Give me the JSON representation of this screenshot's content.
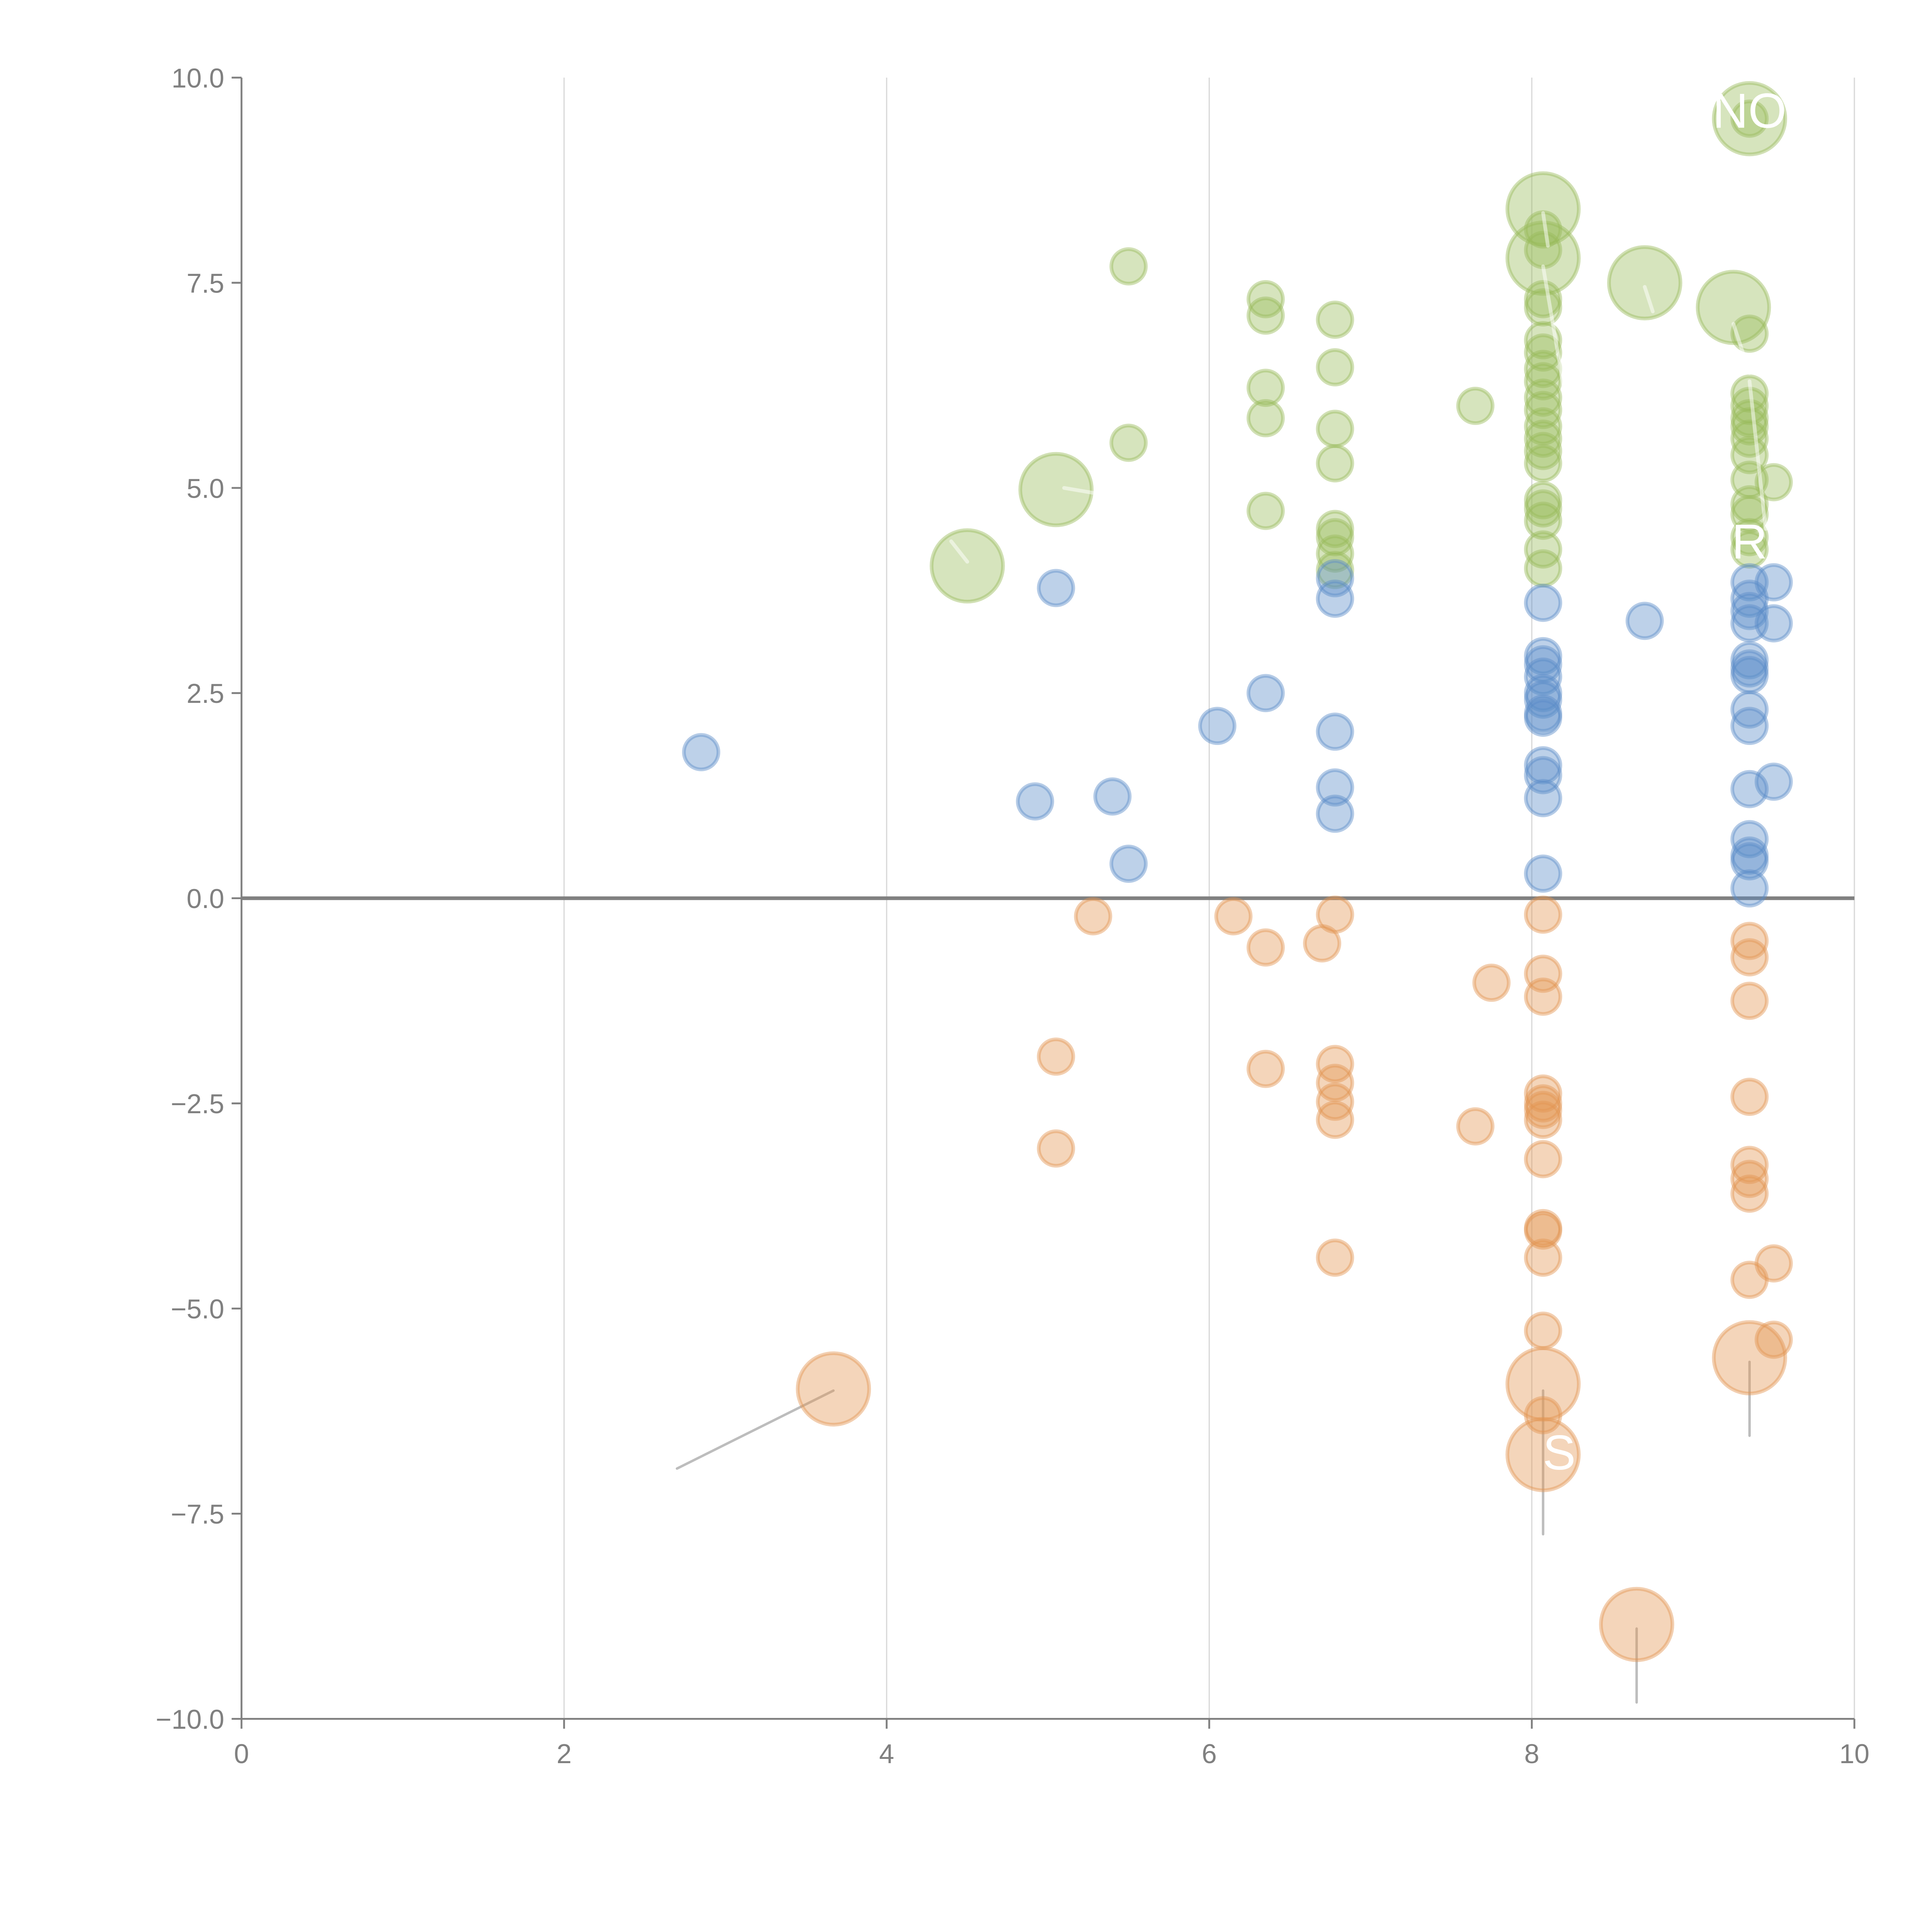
{
  "chart_data": {
    "type": "scatter",
    "subtype": "bubble",
    "title": "",
    "xlabel": "",
    "ylabel": "",
    "xlim": [
      0,
      10
    ],
    "ylim": [
      -10,
      10
    ],
    "x_ticks": [
      "0",
      "2",
      "4",
      "6",
      "8",
      "10"
    ],
    "x_tick_values": [
      0,
      2,
      4,
      6,
      8,
      10
    ],
    "y_ticks": [
      "10.0",
      "7.5",
      "5.0",
      "2.5",
      "0.0",
      "−2.5",
      "−5.0",
      "−7.5",
      "−10.0"
    ],
    "y_tick_values": [
      10,
      7.5,
      5,
      2.5,
      0,
      -2.5,
      -5,
      -7.5,
      -10
    ],
    "grid": "vertical",
    "zero_line": true,
    "legend": "none",
    "colors": {
      "green": "#98bb5a",
      "blue": "#5b8cc8",
      "orange": "#e39552",
      "axis": "#808080",
      "grid": "#d9d9d9"
    },
    "series": [
      {
        "name": "green",
        "color": "#98bb5a",
        "points": [
          {
            "x": 9.35,
            "y": 9.5,
            "size": 3
          },
          {
            "x": 9.35,
            "y": 9.5,
            "size": 1
          },
          {
            "x": 8.07,
            "y": 8.4,
            "size": 3
          },
          {
            "x": 8.07,
            "y": 8.15,
            "size": 1
          },
          {
            "x": 8.07,
            "y": 7.8,
            "size": 3
          },
          {
            "x": 8.07,
            "y": 7.9,
            "size": 1
          },
          {
            "x": 8.7,
            "y": 7.5,
            "size": 3
          },
          {
            "x": 9.25,
            "y": 7.2,
            "size": 3
          },
          {
            "x": 5.5,
            "y": 7.7,
            "size": 1
          },
          {
            "x": 6.35,
            "y": 7.3,
            "size": 1
          },
          {
            "x": 6.35,
            "y": 7.1,
            "size": 1
          },
          {
            "x": 6.78,
            "y": 7.05,
            "size": 1
          },
          {
            "x": 8.07,
            "y": 7.3,
            "size": 1
          },
          {
            "x": 8.07,
            "y": 7.2,
            "size": 1
          },
          {
            "x": 9.35,
            "y": 6.88,
            "size": 1
          },
          {
            "x": 8.07,
            "y": 6.8,
            "size": 1
          },
          {
            "x": 8.07,
            "y": 6.65,
            "size": 1
          },
          {
            "x": 8.07,
            "y": 6.45,
            "size": 1
          },
          {
            "x": 8.07,
            "y": 6.3,
            "size": 1
          },
          {
            "x": 8.07,
            "y": 6.1,
            "size": 1
          },
          {
            "x": 8.07,
            "y": 5.95,
            "size": 1
          },
          {
            "x": 8.07,
            "y": 5.75,
            "size": 1
          },
          {
            "x": 8.07,
            "y": 5.6,
            "size": 1
          },
          {
            "x": 8.07,
            "y": 5.45,
            "size": 1
          },
          {
            "x": 8.07,
            "y": 5.3,
            "size": 1
          },
          {
            "x": 8.07,
            "y": 4.85,
            "size": 1
          },
          {
            "x": 8.07,
            "y": 4.75,
            "size": 1
          },
          {
            "x": 8.07,
            "y": 4.6,
            "size": 1
          },
          {
            "x": 8.07,
            "y": 4.25,
            "size": 1
          },
          {
            "x": 8.07,
            "y": 4.02,
            "size": 1
          },
          {
            "x": 6.78,
            "y": 6.47,
            "size": 1
          },
          {
            "x": 6.35,
            "y": 6.22,
            "size": 1
          },
          {
            "x": 6.35,
            "y": 5.85,
            "size": 1
          },
          {
            "x": 6.78,
            "y": 5.72,
            "size": 1
          },
          {
            "x": 7.65,
            "y": 6.0,
            "size": 1
          },
          {
            "x": 5.5,
            "y": 5.55,
            "size": 1
          },
          {
            "x": 6.78,
            "y": 5.3,
            "size": 1
          },
          {
            "x": 5.05,
            "y": 4.98,
            "size": 3
          },
          {
            "x": 4.5,
            "y": 4.05,
            "size": 3
          },
          {
            "x": 6.35,
            "y": 4.72,
            "size": 1
          },
          {
            "x": 6.78,
            "y": 4.5,
            "size": 1
          },
          {
            "x": 6.78,
            "y": 4.4,
            "size": 1
          },
          {
            "x": 6.78,
            "y": 4.2,
            "size": 1
          },
          {
            "x": 6.78,
            "y": 4.0,
            "size": 1
          },
          {
            "x": 9.35,
            "y": 6.15,
            "size": 1
          },
          {
            "x": 9.35,
            "y": 6.0,
            "size": 1
          },
          {
            "x": 9.35,
            "y": 5.85,
            "size": 1
          },
          {
            "x": 9.35,
            "y": 5.75,
            "size": 1
          },
          {
            "x": 9.35,
            "y": 5.6,
            "size": 1
          },
          {
            "x": 9.35,
            "y": 5.4,
            "size": 1
          },
          {
            "x": 9.35,
            "y": 5.1,
            "size": 1
          },
          {
            "x": 9.5,
            "y": 5.07,
            "size": 1
          },
          {
            "x": 9.35,
            "y": 4.8,
            "size": 1
          },
          {
            "x": 9.35,
            "y": 4.68,
            "size": 1
          },
          {
            "x": 9.35,
            "y": 4.4,
            "size": 1
          },
          {
            "x": 9.35,
            "y": 4.25,
            "size": 1
          }
        ]
      },
      {
        "name": "blue",
        "color": "#5b8cc8",
        "points": [
          {
            "x": 5.05,
            "y": 3.78,
            "size": 1
          },
          {
            "x": 6.78,
            "y": 3.9,
            "size": 1
          },
          {
            "x": 6.78,
            "y": 3.65,
            "size": 1
          },
          {
            "x": 8.07,
            "y": 3.6,
            "size": 1
          },
          {
            "x": 8.7,
            "y": 3.38,
            "size": 1
          },
          {
            "x": 9.35,
            "y": 3.85,
            "size": 1
          },
          {
            "x": 9.5,
            "y": 3.85,
            "size": 1
          },
          {
            "x": 9.35,
            "y": 3.65,
            "size": 1
          },
          {
            "x": 9.35,
            "y": 3.5,
            "size": 1
          },
          {
            "x": 9.35,
            "y": 3.35,
            "size": 1
          },
          {
            "x": 9.5,
            "y": 3.35,
            "size": 1
          },
          {
            "x": 8.07,
            "y": 2.95,
            "size": 1
          },
          {
            "x": 8.07,
            "y": 2.85,
            "size": 1
          },
          {
            "x": 8.07,
            "y": 2.7,
            "size": 1
          },
          {
            "x": 8.07,
            "y": 2.5,
            "size": 1
          },
          {
            "x": 8.07,
            "y": 2.42,
            "size": 1
          },
          {
            "x": 8.07,
            "y": 2.25,
            "size": 1
          },
          {
            "x": 8.07,
            "y": 2.2,
            "size": 1
          },
          {
            "x": 9.35,
            "y": 2.9,
            "size": 1
          },
          {
            "x": 9.35,
            "y": 2.8,
            "size": 1
          },
          {
            "x": 9.35,
            "y": 2.72,
            "size": 1
          },
          {
            "x": 9.35,
            "y": 2.3,
            "size": 1
          },
          {
            "x": 9.35,
            "y": 2.1,
            "size": 1
          },
          {
            "x": 6.35,
            "y": 2.5,
            "size": 1
          },
          {
            "x": 6.05,
            "y": 2.1,
            "size": 1
          },
          {
            "x": 6.78,
            "y": 2.03,
            "size": 1
          },
          {
            "x": 2.85,
            "y": 1.78,
            "size": 1
          },
          {
            "x": 8.07,
            "y": 1.62,
            "size": 1
          },
          {
            "x": 8.07,
            "y": 1.5,
            "size": 1
          },
          {
            "x": 8.07,
            "y": 1.22,
            "size": 1
          },
          {
            "x": 9.5,
            "y": 1.42,
            "size": 1
          },
          {
            "x": 9.35,
            "y": 1.33,
            "size": 1
          },
          {
            "x": 6.78,
            "y": 1.35,
            "size": 1
          },
          {
            "x": 5.4,
            "y": 1.24,
            "size": 1
          },
          {
            "x": 4.92,
            "y": 1.18,
            "size": 1
          },
          {
            "x": 6.78,
            "y": 1.03,
            "size": 1
          },
          {
            "x": 9.35,
            "y": 0.72,
            "size": 1
          },
          {
            "x": 9.35,
            "y": 0.52,
            "size": 1
          },
          {
            "x": 9.35,
            "y": 0.45,
            "size": 1
          },
          {
            "x": 5.5,
            "y": 0.42,
            "size": 1
          },
          {
            "x": 8.07,
            "y": 0.3,
            "size": 1
          },
          {
            "x": 9.35,
            "y": 0.12,
            "size": 1
          }
        ]
      },
      {
        "name": "orange",
        "color": "#e39552",
        "points": [
          {
            "x": 5.28,
            "y": -0.22,
            "size": 1
          },
          {
            "x": 6.15,
            "y": -0.22,
            "size": 1
          },
          {
            "x": 6.78,
            "y": -0.2,
            "size": 1
          },
          {
            "x": 8.07,
            "y": -0.2,
            "size": 1
          },
          {
            "x": 6.35,
            "y": -0.6,
            "size": 1
          },
          {
            "x": 6.7,
            "y": -0.55,
            "size": 1
          },
          {
            "x": 9.35,
            "y": -0.52,
            "size": 1
          },
          {
            "x": 9.35,
            "y": -0.72,
            "size": 1
          },
          {
            "x": 8.07,
            "y": -0.92,
            "size": 1
          },
          {
            "x": 7.75,
            "y": -1.03,
            "size": 1
          },
          {
            "x": 8.07,
            "y": -1.2,
            "size": 1
          },
          {
            "x": 9.35,
            "y": -1.25,
            "size": 1
          },
          {
            "x": 5.05,
            "y": -1.93,
            "size": 1
          },
          {
            "x": 6.78,
            "y": -2.02,
            "size": 1
          },
          {
            "x": 6.35,
            "y": -2.08,
            "size": 1
          },
          {
            "x": 6.78,
            "y": -2.25,
            "size": 1
          },
          {
            "x": 6.78,
            "y": -2.48,
            "size": 1
          },
          {
            "x": 6.78,
            "y": -2.7,
            "size": 1
          },
          {
            "x": 8.07,
            "y": -2.38,
            "size": 1
          },
          {
            "x": 8.07,
            "y": -2.5,
            "size": 1
          },
          {
            "x": 8.07,
            "y": -2.58,
            "size": 1
          },
          {
            "x": 8.07,
            "y": -2.7,
            "size": 1
          },
          {
            "x": 9.35,
            "y": -2.42,
            "size": 1
          },
          {
            "x": 7.65,
            "y": -2.78,
            "size": 1
          },
          {
            "x": 5.05,
            "y": -3.05,
            "size": 1
          },
          {
            "x": 8.07,
            "y": -3.18,
            "size": 1
          },
          {
            "x": 9.35,
            "y": -3.25,
            "size": 1
          },
          {
            "x": 9.35,
            "y": -3.42,
            "size": 1
          },
          {
            "x": 9.35,
            "y": -3.6,
            "size": 1
          },
          {
            "x": 8.07,
            "y": -4.02,
            "size": 1
          },
          {
            "x": 8.07,
            "y": -4.05,
            "size": 1
          },
          {
            "x": 6.78,
            "y": -4.38,
            "size": 1
          },
          {
            "x": 8.07,
            "y": -4.38,
            "size": 1
          },
          {
            "x": 9.5,
            "y": -4.45,
            "size": 1
          },
          {
            "x": 9.35,
            "y": -4.65,
            "size": 1
          },
          {
            "x": 8.07,
            "y": -5.27,
            "size": 1
          },
          {
            "x": 9.5,
            "y": -5.38,
            "size": 1
          },
          {
            "x": 9.35,
            "y": -5.6,
            "size": 3
          },
          {
            "x": 8.07,
            "y": -5.92,
            "size": 3
          },
          {
            "x": 3.67,
            "y": -5.98,
            "size": 3
          },
          {
            "x": 8.07,
            "y": -6.3,
            "size": 1
          },
          {
            "x": 8.07,
            "y": -6.78,
            "size": 3
          },
          {
            "x": 8.65,
            "y": -8.85,
            "size": 3
          }
        ]
      }
    ],
    "annotations": [
      {
        "text": "NO",
        "x": 9.35,
        "y": 9.6,
        "partially_visible": true
      },
      {
        "text": "R",
        "x": 9.35,
        "y": 4.35,
        "partially_visible": true
      },
      {
        "text": "S",
        "x": 8.17,
        "y": -6.75,
        "partially_visible": true
      }
    ],
    "leader_lines": [
      {
        "from": [
          3.67,
          -6.0
        ],
        "to": [
          2.7,
          -6.95
        ]
      },
      {
        "from": [
          8.07,
          -6.0
        ],
        "to": [
          8.07,
          -7.75
        ]
      },
      {
        "from": [
          9.35,
          -5.65
        ],
        "to": [
          9.35,
          -6.55
        ]
      },
      {
        "from": [
          8.65,
          -8.9
        ],
        "to": [
          8.65,
          -9.8
        ]
      }
    ]
  }
}
